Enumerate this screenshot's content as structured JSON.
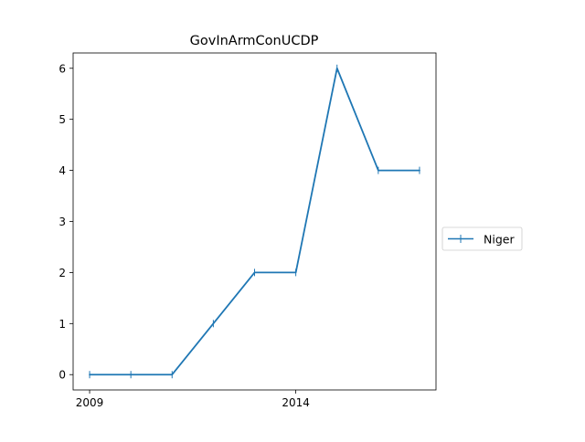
{
  "chart_data": {
    "type": "line",
    "title": "GovInArmConUCDP",
    "xlabel": "",
    "ylabel": "",
    "x": [
      2009,
      2010,
      2011,
      2012,
      2013,
      2014,
      2015,
      2016,
      2017
    ],
    "series": [
      {
        "name": "Niger",
        "values": [
          0,
          0,
          0,
          1,
          2,
          2,
          6,
          4,
          4
        ],
        "color": "#1f77b4"
      }
    ],
    "xlim": [
      2008.6,
      2017.4
    ],
    "ylim": [
      -0.3,
      6.3
    ],
    "xticks": [
      2009,
      2014
    ],
    "yticks": [
      0,
      1,
      2,
      3,
      4,
      5,
      6
    ],
    "grid": false,
    "legend": "outside-right",
    "marker": "vertical-tick"
  }
}
